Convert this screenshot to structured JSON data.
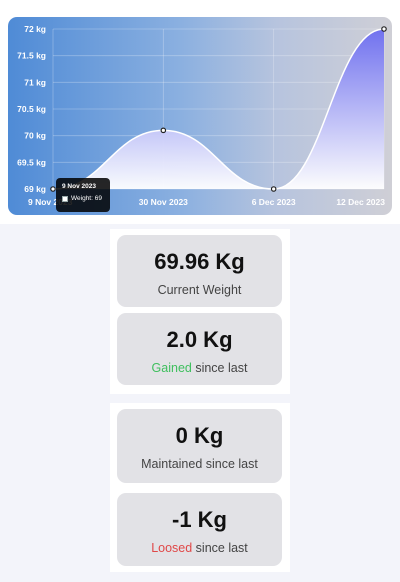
{
  "chart_data": {
    "type": "area",
    "x": [
      "9 Nov 2023",
      "30 Nov 2023",
      "6 Dec 2023",
      "12 Dec 2023"
    ],
    "series": [
      {
        "name": "Weight",
        "values": [
          69,
          70.1,
          69,
          72
        ]
      }
    ],
    "ylim": [
      69,
      72
    ],
    "yticks": [
      "69 kg",
      "69.5 kg",
      "70 kg",
      "70.5 kg",
      "71 kg",
      "71.5 kg",
      "72 kg"
    ],
    "xtick_labels": [
      "9 Nov 2023",
      "30 Nov 2023",
      "6 Dec 2023",
      "12 Dec 2023"
    ],
    "grid": true,
    "colors": {
      "line": "#ffffff",
      "fill_top": "#6b6cf0",
      "fill_bottom": "#ffffff"
    }
  },
  "tooltip": {
    "title": "9 Nov 2023",
    "label": "Weight: 69"
  },
  "stats": {
    "current": {
      "value": "69.96 Kg",
      "label": "Current Weight"
    },
    "gained": {
      "value": "2.0 Kg",
      "highlight": "Gained",
      "rest": " since last"
    },
    "maintained": {
      "value": "0 Kg",
      "label": "Maintained since last"
    },
    "loosed": {
      "value": "-1 Kg",
      "highlight": "Loosed",
      "rest": " since last"
    }
  }
}
